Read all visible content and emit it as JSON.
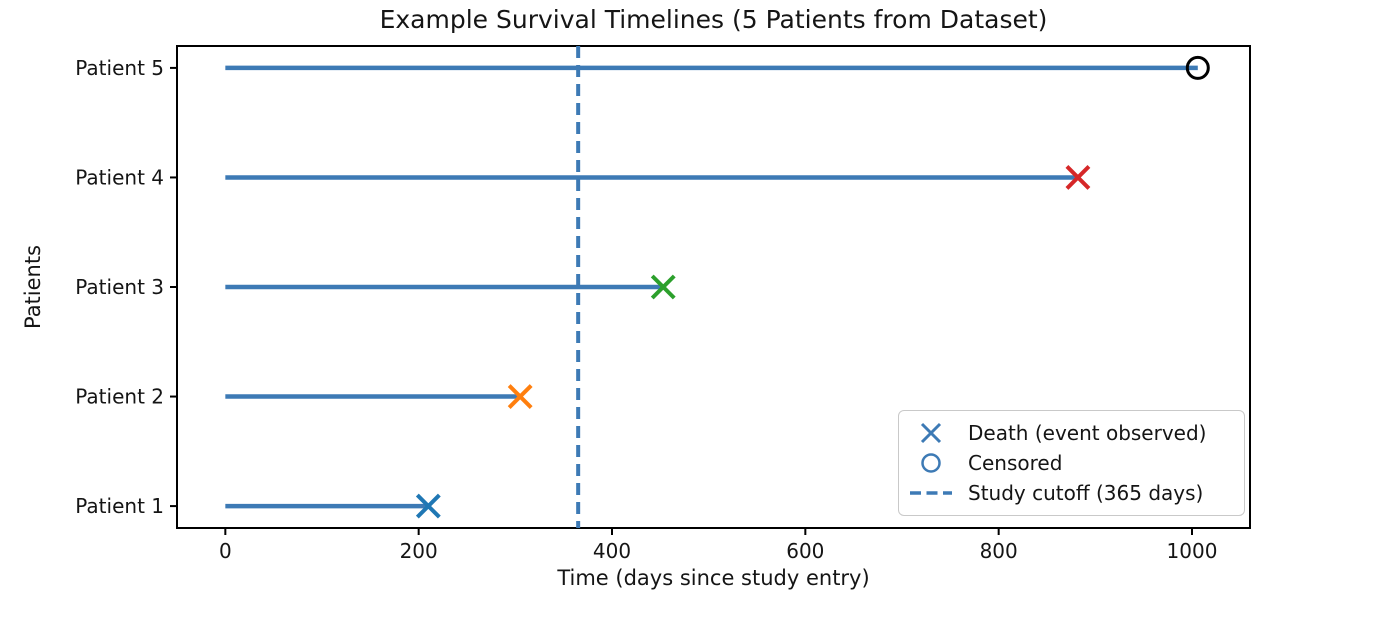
{
  "chart_data": {
    "type": "timeline",
    "title": "Example Survival Timelines (5 Patients from Dataset)",
    "xlabel": "Time (days since study entry)",
    "ylabel": "Patients",
    "x_ticks": [
      0,
      200,
      400,
      600,
      800,
      1000
    ],
    "xlim": [
      -50,
      1060
    ],
    "ylim": [
      0.8,
      5.2
    ],
    "grid": false,
    "patients": [
      {
        "label": "Patient 1",
        "y": 1,
        "duration_days": 210,
        "event": "death",
        "marker_color": "#1f77b4"
      },
      {
        "label": "Patient 2",
        "y": 2,
        "duration_days": 305,
        "event": "death",
        "marker_color": "#ff7f0e"
      },
      {
        "label": "Patient 3",
        "y": 3,
        "duration_days": 453,
        "event": "death",
        "marker_color": "#2ca02c"
      },
      {
        "label": "Patient 4",
        "y": 4,
        "duration_days": 882,
        "event": "death",
        "marker_color": "#d62728"
      },
      {
        "label": "Patient 5",
        "y": 5,
        "duration_days": 1006,
        "event": "censored",
        "marker_color": "#000000"
      }
    ],
    "line_color": "#3d7ab5",
    "cutoff": {
      "value": 365,
      "color": "#3d7ab5",
      "label": "Study cutoff (365 days)"
    },
    "legend": {
      "position": "lower right",
      "marker_color": "#3d7ab5",
      "entries": [
        {
          "marker": "x-icon",
          "label": "Death (event observed)"
        },
        {
          "marker": "circle-icon",
          "label": "Censored"
        },
        {
          "marker": "dashed-line-icon",
          "label": "Study cutoff (365 days)"
        }
      ]
    },
    "axis_color": "#000000",
    "text_color": "#151515"
  }
}
